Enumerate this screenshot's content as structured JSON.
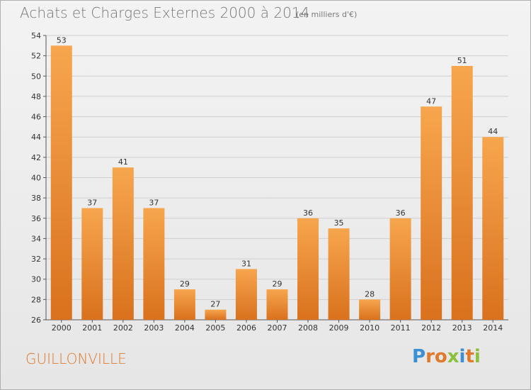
{
  "header": {
    "title": "Achats et Charges Externes 2000 à 2014",
    "subtitle": "(en milliers d'€)"
  },
  "footer": {
    "commune": "GUILLONVILLE",
    "logo_text": "Proxiti",
    "logo_letters": [
      {
        "char": "P",
        "color": "#3b8fd4"
      },
      {
        "char": "r",
        "color": "#e0792a"
      },
      {
        "char": "o",
        "color": "#e0792a"
      },
      {
        "char": "x",
        "color": "#8bbf3c"
      },
      {
        "char": "i",
        "color": "#3b8fd4"
      },
      {
        "char": "t",
        "color": "#e0792a"
      },
      {
        "char": "i",
        "color": "#8bbf3c"
      }
    ]
  },
  "colors": {
    "bar_top": "#f7a64e",
    "bar_bottom": "#d9711d",
    "grid": "#cfcfcf",
    "axis_text": "#333333",
    "accent": "#e0792a"
  },
  "chart_data": {
    "type": "bar",
    "title": "Achats et Charges Externes 2000 à 2014",
    "subtitle": "(en milliers d'€)",
    "categories": [
      "2000",
      "2001",
      "2002",
      "2003",
      "2004",
      "2005",
      "2006",
      "2007",
      "2008",
      "2009",
      "2010",
      "2011",
      "2012",
      "2013",
      "2014"
    ],
    "values": [
      53,
      37,
      41,
      37,
      29,
      27,
      31,
      29,
      36,
      35,
      28,
      36,
      47,
      51,
      44
    ],
    "ylim": [
      26,
      54
    ],
    "yticks": [
      26,
      28,
      30,
      32,
      34,
      36,
      38,
      40,
      42,
      44,
      46,
      48,
      50,
      52,
      54
    ],
    "grid": true,
    "xlabel": "",
    "ylabel": ""
  }
}
